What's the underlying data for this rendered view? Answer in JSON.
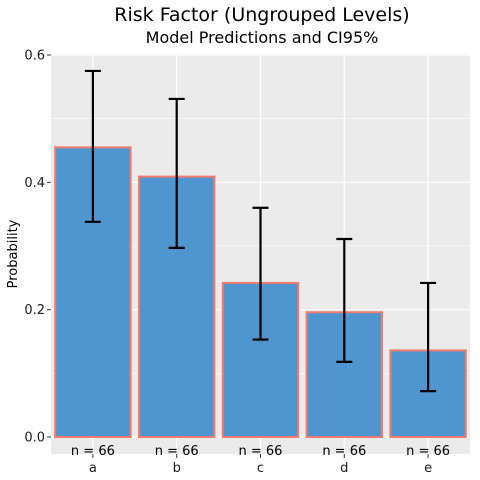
{
  "chart_data": {
    "type": "bar",
    "title": "Risk Factor (Ungrouped Levels)",
    "subtitle": "Model Predictions and CI95%",
    "xlabel": "",
    "ylabel": "Probability",
    "categories": [
      "a",
      "b",
      "c",
      "d",
      "e"
    ],
    "values": [
      0.455,
      0.409,
      0.242,
      0.196,
      0.136
    ],
    "ci_lower": [
      0.338,
      0.297,
      0.153,
      0.118,
      0.072
    ],
    "ci_upper": [
      0.575,
      0.531,
      0.36,
      0.311,
      0.242
    ],
    "counts": [
      "n = 66",
      "n = 66",
      "n = 66",
      "n = 66",
      "n = 66"
    ],
    "ylim": [
      -0.03,
      0.605
    ],
    "yticks": [
      0.0,
      0.2,
      0.4,
      0.6
    ],
    "ytick_labels": [
      "0.0",
      "0.2",
      "0.4",
      "0.6"
    ],
    "grid": true,
    "legend": "none",
    "colors": {
      "bar_fill": "#4f96d1",
      "bar_outline": "#f37b6d",
      "errorbar": "#000000",
      "panel_background": "#ebebeb",
      "grid_line": "#ffffff"
    }
  }
}
